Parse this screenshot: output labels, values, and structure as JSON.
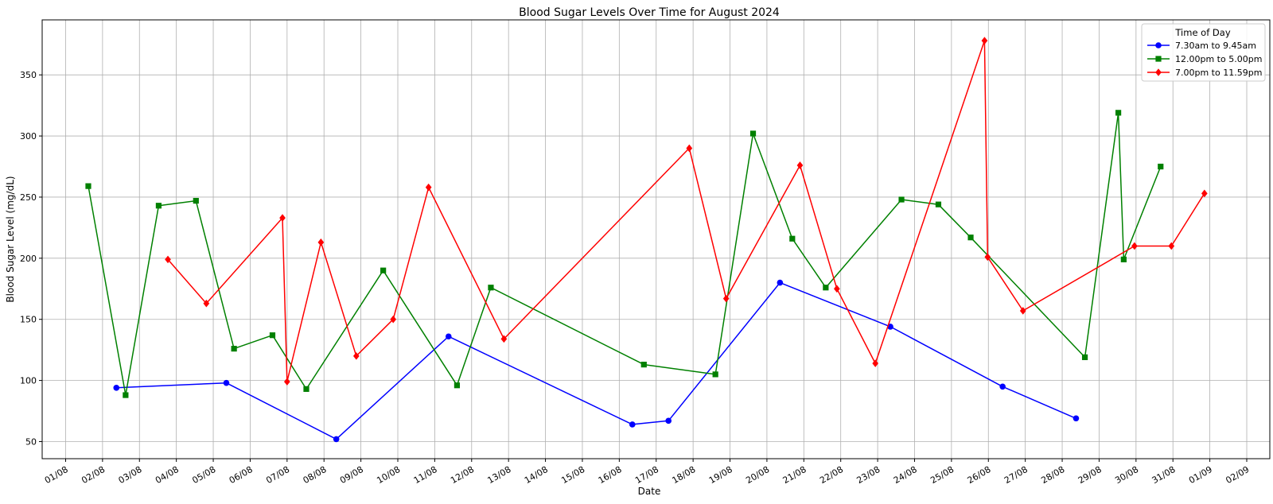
{
  "chart_data": {
    "type": "line",
    "title": "Blood Sugar Levels Over Time for August 2024",
    "xlabel": "Date",
    "ylabel": "Blood Sugar Level (mg/dL)",
    "x_range": [
      "2024-07-31T08:45",
      "2024-09-02T15:00"
    ],
    "ylim": [
      36,
      395
    ],
    "yticks": [
      50,
      100,
      150,
      200,
      250,
      300,
      350
    ],
    "xtick_labels": [
      "01/08",
      "02/08",
      "03/08",
      "04/08",
      "05/08",
      "06/08",
      "07/08",
      "08/08",
      "09/08",
      "10/08",
      "11/08",
      "12/08",
      "13/08",
      "14/08",
      "15/08",
      "16/08",
      "17/08",
      "18/08",
      "19/08",
      "20/08",
      "21/08",
      "22/08",
      "23/08",
      "24/08",
      "25/08",
      "26/08",
      "27/08",
      "28/08",
      "29/08",
      "30/08",
      "31/08",
      "01/09",
      "02/09"
    ],
    "grid": true,
    "legend": {
      "title": "Time of Day",
      "position": "top-right"
    },
    "series": [
      {
        "name": "7.30am to 9.45am",
        "color": "#0000ff",
        "marker": "circle",
        "points": [
          {
            "t": "2024-08-02T09:00",
            "y": 94
          },
          {
            "t": "2024-08-05T08:30",
            "y": 98
          },
          {
            "t": "2024-08-08T08:00",
            "y": 52
          },
          {
            "t": "2024-08-11T09:00",
            "y": 136
          },
          {
            "t": "2024-08-16T08:30",
            "y": 64
          },
          {
            "t": "2024-08-17T08:00",
            "y": 67
          },
          {
            "t": "2024-08-20T08:30",
            "y": 180
          },
          {
            "t": "2024-08-23T08:15",
            "y": 144
          },
          {
            "t": "2024-08-26T09:15",
            "y": 95
          },
          {
            "t": "2024-08-28T09:00",
            "y": 69
          }
        ]
      },
      {
        "name": "12.00pm to 5.00pm",
        "color": "#008000",
        "marker": "square",
        "points": [
          {
            "t": "2024-08-01T14:45",
            "y": 259
          },
          {
            "t": "2024-08-02T15:00",
            "y": 88
          },
          {
            "t": "2024-08-03T12:30",
            "y": 243
          },
          {
            "t": "2024-08-04T12:45",
            "y": 247
          },
          {
            "t": "2024-08-05T13:30",
            "y": 126
          },
          {
            "t": "2024-08-06T14:30",
            "y": 137
          },
          {
            "t": "2024-08-07T12:30",
            "y": 93
          },
          {
            "t": "2024-08-09T14:30",
            "y": 190
          },
          {
            "t": "2024-08-11T14:30",
            "y": 96
          },
          {
            "t": "2024-08-12T12:30",
            "y": 176
          },
          {
            "t": "2024-08-16T16:00",
            "y": 113
          },
          {
            "t": "2024-08-18T14:30",
            "y": 105
          },
          {
            "t": "2024-08-19T15:00",
            "y": 302
          },
          {
            "t": "2024-08-20T16:30",
            "y": 216
          },
          {
            "t": "2024-08-21T14:15",
            "y": 176
          },
          {
            "t": "2024-08-23T15:30",
            "y": 248
          },
          {
            "t": "2024-08-24T15:30",
            "y": 244
          },
          {
            "t": "2024-08-25T12:30",
            "y": 217
          },
          {
            "t": "2024-08-28T14:45",
            "y": 119
          },
          {
            "t": "2024-08-29T12:30",
            "y": 319
          },
          {
            "t": "2024-08-29T16:00",
            "y": 199
          },
          {
            "t": "2024-08-30T16:00",
            "y": 275
          }
        ]
      },
      {
        "name": "7.00pm to 11.59pm",
        "color": "#ff0000",
        "marker": "diamond",
        "points": [
          {
            "t": "2024-08-03T18:30",
            "y": 199
          },
          {
            "t": "2024-08-04T19:30",
            "y": 163
          },
          {
            "t": "2024-08-06T21:00",
            "y": 233
          },
          {
            "t": "2024-08-07T00:00",
            "y": 99
          },
          {
            "t": "2024-08-07T22:00",
            "y": 213
          },
          {
            "t": "2024-08-08T21:00",
            "y": 120
          },
          {
            "t": "2024-08-09T21:00",
            "y": 150
          },
          {
            "t": "2024-08-10T20:00",
            "y": 258
          },
          {
            "t": "2024-08-12T21:00",
            "y": 134
          },
          {
            "t": "2024-08-17T21:30",
            "y": 290
          },
          {
            "t": "2024-08-18T21:30",
            "y": 167
          },
          {
            "t": "2024-08-20T21:30",
            "y": 276
          },
          {
            "t": "2024-08-21T21:30",
            "y": 175
          },
          {
            "t": "2024-08-22T22:30",
            "y": 114
          },
          {
            "t": "2024-08-25T21:30",
            "y": 378
          },
          {
            "t": "2024-08-25T23:30",
            "y": 201
          },
          {
            "t": "2024-08-26T22:30",
            "y": 157
          },
          {
            "t": "2024-08-29T23:00",
            "y": 210
          },
          {
            "t": "2024-08-30T23:00",
            "y": 210
          },
          {
            "t": "2024-08-31T20:30",
            "y": 253
          }
        ]
      }
    ]
  }
}
